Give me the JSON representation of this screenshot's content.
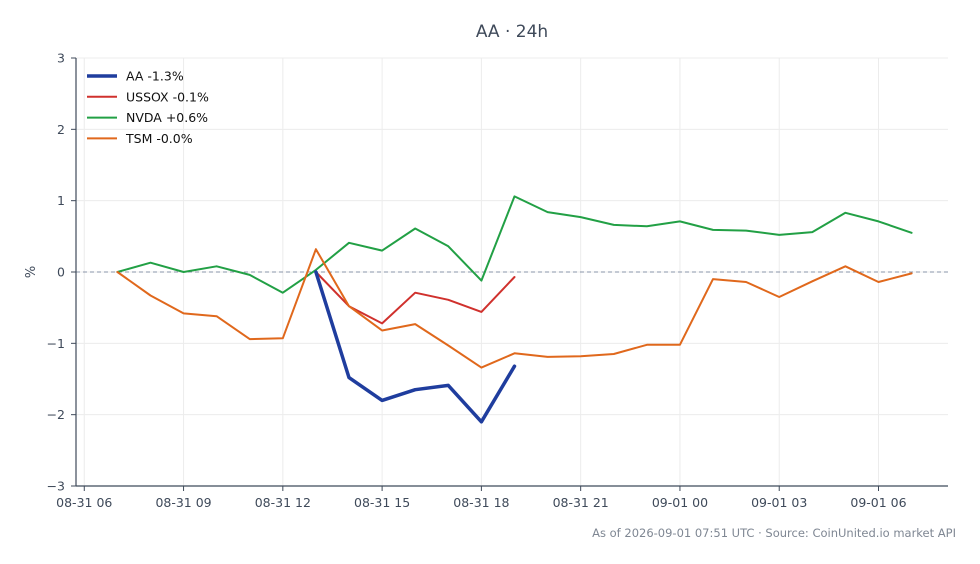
{
  "chart_data": {
    "type": "line",
    "title": "AA · 24h",
    "xlabel": "",
    "ylabel": "%",
    "x_ticks": [
      "08-31 06",
      "08-31 09",
      "08-31 12",
      "08-31 15",
      "08-31 18",
      "08-31 21",
      "09-01 00",
      "09-01 03",
      "09-01 06"
    ],
    "x_tick_hours": [
      0,
      3,
      6,
      9,
      12,
      15,
      18,
      21,
      24
    ],
    "xlim_hours": [
      -0.25,
      26.1
    ],
    "ylim": [
      -3,
      3
    ],
    "y_ticks": [
      -3,
      -2,
      -1,
      0,
      1,
      2,
      3
    ],
    "y_tick_labels": [
      "−3",
      "−2",
      "−1",
      "0",
      "1",
      "2",
      "3"
    ],
    "grid": true,
    "zero_line": true,
    "legend_position": "top-left",
    "series": [
      {
        "name": "AA -1.3%",
        "color": "#1f3d9e",
        "width": 3.5,
        "x_hours": [
          7,
          8,
          9,
          10,
          11,
          12,
          13
        ],
        "values": [
          0,
          -1.48,
          -1.8,
          -1.65,
          -1.59,
          -2.1,
          -1.32
        ]
      },
      {
        "name": "USSOX -0.1%",
        "color": "#d0312d",
        "width": 2,
        "x_hours": [
          7,
          8,
          9,
          10,
          11,
          12,
          13
        ],
        "values": [
          0,
          -0.48,
          -0.72,
          -0.29,
          -0.39,
          -0.56,
          -0.07
        ]
      },
      {
        "name": "NVDA +0.6%",
        "color": "#22a045",
        "width": 2,
        "x_hours": [
          1,
          2,
          3,
          4,
          5,
          6,
          7,
          8,
          9,
          10,
          11,
          12,
          13,
          14,
          15,
          16,
          17,
          18,
          19,
          20,
          21,
          22,
          23,
          24,
          25
        ],
        "values": [
          0,
          0.13,
          0.0,
          0.08,
          -0.04,
          -0.29,
          0.03,
          0.41,
          0.3,
          0.61,
          0.36,
          -0.12,
          1.06,
          0.84,
          0.77,
          0.66,
          0.64,
          0.71,
          0.59,
          0.58,
          0.52,
          0.56,
          0.83,
          0.71,
          0.55
        ]
      },
      {
        "name": "TSM -0.0%",
        "color": "#e0681c",
        "width": 2,
        "x_hours": [
          1,
          2,
          3,
          4,
          5,
          6,
          7,
          8,
          9,
          10,
          11,
          12,
          13,
          14,
          15,
          16,
          17,
          18,
          19,
          20,
          21,
          22,
          23,
          24,
          25
        ],
        "values": [
          0,
          -0.33,
          -0.58,
          -0.62,
          -0.94,
          -0.93,
          0.32,
          -0.48,
          -0.82,
          -0.73,
          -1.03,
          -1.34,
          -1.14,
          -1.19,
          -1.18,
          -1.15,
          -1.02,
          -1.02,
          -0.1,
          -0.14,
          -0.35,
          -0.13,
          0.08,
          -0.14,
          -0.02
        ]
      }
    ]
  },
  "footer": "As of 2026-09-01 07:51 UTC · Source: CoinUnited.io market API"
}
